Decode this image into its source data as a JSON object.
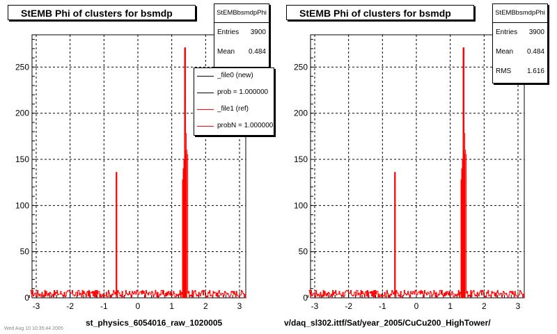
{
  "chart_data": [
    {
      "type": "histogram",
      "title": "StEMB Phi of clusters for bsmdp",
      "xlabel": "st_physics_6054016_raw_1020005",
      "ylabel": "",
      "xlim": [
        -3.2,
        3.2
      ],
      "ylim": [
        0,
        285
      ],
      "x_ticks": [
        -3,
        -2,
        -1,
        0,
        1,
        2,
        3
      ],
      "x_tick_labels": [
        "-3",
        "-2",
        "-1",
        "0",
        "1",
        "2",
        "3"
      ],
      "y_ticks": [
        0,
        50,
        100,
        150,
        200,
        250
      ],
      "y_tick_labels": [
        "0",
        "50",
        "100",
        "150",
        "200",
        "250"
      ],
      "grid": true,
      "baseline_noise": [
        1,
        8
      ],
      "spikes": [
        {
          "x": -0.64,
          "y": 136
        },
        {
          "x": 1.32,
          "y": 128
        },
        {
          "x": 1.34,
          "y": 140
        },
        {
          "x": 1.36,
          "y": 150
        },
        {
          "x": 1.38,
          "y": 271
        },
        {
          "x": 1.4,
          "y": 178
        },
        {
          "x": 1.42,
          "y": 160
        },
        {
          "x": 1.44,
          "y": 155
        }
      ],
      "series": [
        {
          "name": "_file0 (new)",
          "color": "#000000"
        },
        {
          "name": "_file1 (ref)",
          "color": "#ff0000"
        }
      ],
      "stats": {
        "name": "StEMBbsmdpPhi",
        "entries": "3900",
        "mean": "0.484"
      },
      "legend": {
        "placement": "top-right",
        "entries": [
          {
            "label": "_file0 (new)",
            "color": "#000000"
          },
          {
            "label": "prob = 1.000000",
            "color": "#000000"
          },
          {
            "label": "_file1 (ref)",
            "color": "#ff0000"
          },
          {
            "label": "probN = 1.000000",
            "color": "#ff0000"
          }
        ]
      }
    },
    {
      "type": "histogram",
      "title": "StEMB Phi of clusters for bsmdp",
      "xlabel": "v/daq_sl302.ittf/Sat/year_2005/CuCu200_HighTower/",
      "ylabel": "",
      "xlim": [
        -3.2,
        3.2
      ],
      "ylim": [
        0,
        285
      ],
      "x_ticks": [
        -3,
        -2,
        -1,
        0,
        1,
        2,
        3
      ],
      "x_tick_labels": [
        "-3",
        "-2",
        "-1",
        "0",
        "1",
        "2",
        "3"
      ],
      "y_ticks": [
        0,
        50,
        100,
        150,
        200,
        250
      ],
      "y_tick_labels": [
        "0",
        "50",
        "100",
        "150",
        "200",
        "250"
      ],
      "grid": true,
      "baseline_noise": [
        1,
        8
      ],
      "spikes": [
        {
          "x": -0.64,
          "y": 136
        },
        {
          "x": 1.32,
          "y": 128
        },
        {
          "x": 1.34,
          "y": 140
        },
        {
          "x": 1.36,
          "y": 150
        },
        {
          "x": 1.38,
          "y": 271
        },
        {
          "x": 1.4,
          "y": 178
        },
        {
          "x": 1.42,
          "y": 160
        },
        {
          "x": 1.44,
          "y": 155
        }
      ],
      "series": [
        {
          "name": "_file1 (ref)",
          "color": "#ff0000"
        }
      ],
      "stats": {
        "name": "StEMBbsmdpPhi",
        "entries": "3900",
        "mean": "0.484",
        "rms": "1.616"
      }
    }
  ],
  "labels": {
    "entries": "Entries",
    "mean": "Mean",
    "rms": "RMS"
  },
  "footer": "Wed Aug 10 10:35:44 2005"
}
